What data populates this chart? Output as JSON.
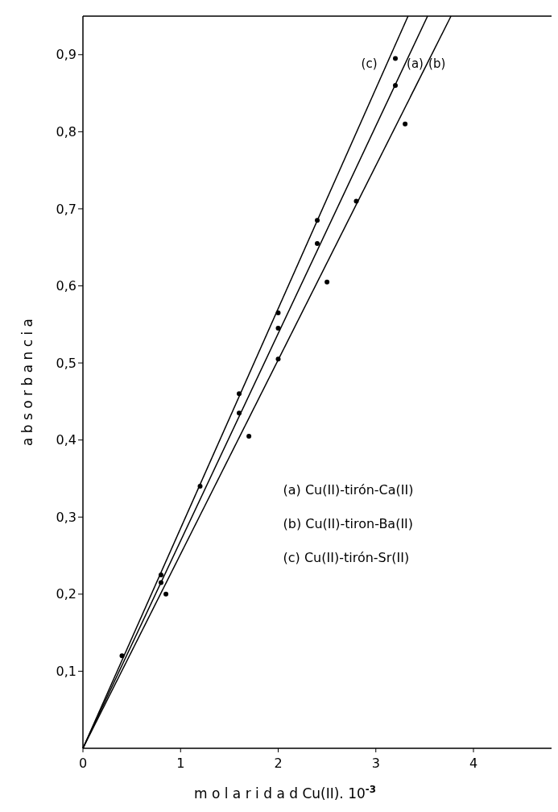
{
  "chart_data": {
    "type": "scatter",
    "xlabel": "m o l a r i d a d    Cu(II). 10$^{-3}$",
    "ylabel": "a b s o r b a n c i a",
    "xlim": [
      0,
      4.8
    ],
    "ylim": [
      0,
      0.95
    ],
    "xticks": [
      0,
      1,
      2,
      3,
      4
    ],
    "yticks": [
      {
        "value": 0.1,
        "label": "0,1"
      },
      {
        "value": 0.2,
        "label": "0,2"
      },
      {
        "value": 0.3,
        "label": "0,3"
      },
      {
        "value": 0.4,
        "label": "0,4"
      },
      {
        "value": 0.5,
        "label": "0,5"
      },
      {
        "value": 0.6,
        "label": "0,6"
      },
      {
        "value": 0.7,
        "label": "0,7"
      },
      {
        "value": 0.8,
        "label": "0,8"
      },
      {
        "value": 0.9,
        "label": "0,9"
      }
    ],
    "series": [
      {
        "type": "line",
        "marker": "none",
        "name": "(a)",
        "color": "#000000",
        "x": [
          0,
          3.53
        ],
        "values": [
          0,
          0.95
        ]
      },
      {
        "type": "line",
        "marker": "none",
        "name": "(b)",
        "color": "#000000",
        "x": [
          0,
          3.77
        ],
        "values": [
          0,
          0.95
        ]
      },
      {
        "type": "line",
        "marker": "none",
        "name": "(c)",
        "color": "#000000",
        "x": [
          0,
          3.33
        ],
        "values": [
          0,
          0.95
        ]
      },
      {
        "color": "#000000",
        "x": [
          0.8,
          1.6,
          2.0,
          2.4,
          3.2
        ],
        "values": [
          0.215,
          0.435,
          0.545,
          0.655,
          0.86
        ]
      },
      {
        "color": "#000000",
        "x": [
          0.85,
          1.7,
          2.0,
          2.5,
          2.8,
          3.3
        ],
        "values": [
          0.2,
          0.405,
          0.505,
          0.605,
          0.71,
          0.81
        ]
      },
      {
        "color": "#000000",
        "x": [
          0.4,
          0.8,
          1.2,
          1.6,
          2.0,
          2.4,
          3.2
        ],
        "values": [
          0.12,
          0.225,
          0.34,
          0.46,
          0.565,
          0.685,
          0.895
        ]
      }
    ],
    "annotations": [
      "(a) Cu(II)-tirón-Ca(II)",
      "(b) Cu(II)-tiron-Ba(II)",
      "(c) Cu(II)-tirón-Sr(II)"
    ],
    "marker": "circle"
  }
}
